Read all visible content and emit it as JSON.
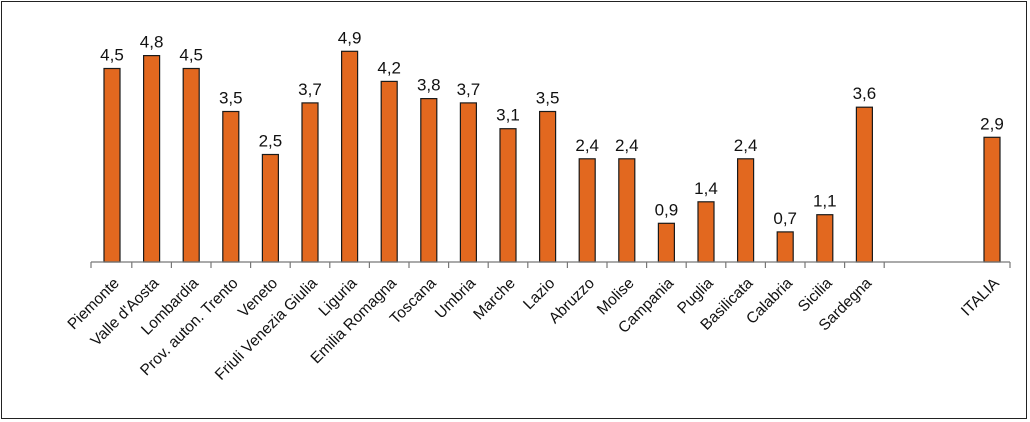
{
  "chart_data": {
    "type": "bar",
    "categories": [
      "Piemonte",
      "Valle d'Aosta",
      "Lombardia",
      "Prov. auton. Trento",
      "Veneto",
      "Friuli Venezia Giulia",
      "Liguria",
      "Emilia Romagna",
      "Toscana",
      "Umbria",
      "Marche",
      "Lazio",
      "Abruzzo",
      "Molise",
      "Campania",
      "Puglia",
      "Basilicata",
      "Calabria",
      "Sicilia",
      "Sardegna",
      "ITALIA"
    ],
    "values": [
      4.5,
      4.8,
      4.5,
      3.5,
      2.5,
      3.7,
      4.9,
      4.2,
      3.8,
      3.7,
      3.1,
      3.5,
      2.4,
      2.4,
      0.9,
      1.4,
      2.4,
      0.7,
      1.1,
      3.6,
      2.9
    ],
    "data_labels": [
      "4,5",
      "4,8",
      "4,5",
      "3,5",
      "2,5",
      "3,7",
      "4,9",
      "4,2",
      "3,8",
      "3,7",
      "3,1",
      "3,5",
      "2,4",
      "2,4",
      "0,9",
      "1,4",
      "2,4",
      "0,7",
      "1,1",
      "3,6",
      "2,9"
    ],
    "ylim": [
      0,
      5
    ],
    "grid": false,
    "legend": "none",
    "bar_color": "#e2681f",
    "bar_edge_color": "#1a1a1a"
  }
}
